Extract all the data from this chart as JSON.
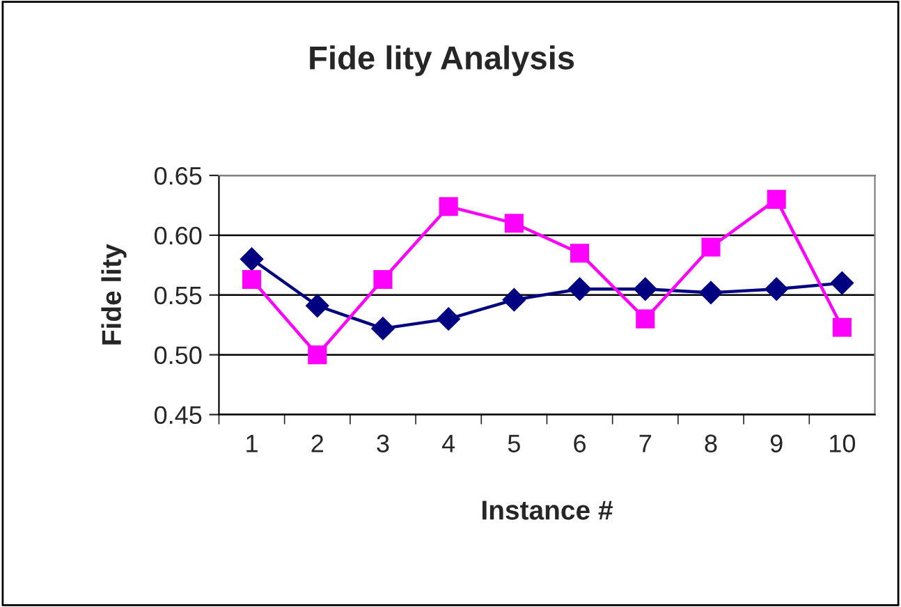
{
  "chart_data": {
    "type": "line",
    "title": "Fide lity Analysis",
    "xlabel": "Instance #",
    "ylabel": "Fide lity",
    "categories": [
      "1",
      "2",
      "3",
      "4",
      "5",
      "6",
      "7",
      "8",
      "9",
      "10"
    ],
    "series": [
      {
        "color": "#000080",
        "marker": "diamond",
        "values": [
          0.58,
          0.541,
          0.522,
          0.53,
          0.546,
          0.555,
          0.555,
          0.552,
          0.555,
          0.56
        ]
      },
      {
        "color": "#ff00ff",
        "marker": "square",
        "values": [
          0.563,
          0.5,
          0.563,
          0.624,
          0.61,
          0.585,
          0.53,
          0.59,
          0.63,
          0.523
        ]
      }
    ],
    "ylim": [
      0.45,
      0.65
    ],
    "yticks": [
      {
        "value": 0.45,
        "label": "0.45"
      },
      {
        "value": 0.5,
        "label": "0.50"
      },
      {
        "value": 0.55,
        "label": "0.55"
      },
      {
        "value": 0.6,
        "label": "0.60"
      },
      {
        "value": 0.65,
        "label": "0.65"
      }
    ],
    "grid": "y",
    "line_style": "solid"
  }
}
